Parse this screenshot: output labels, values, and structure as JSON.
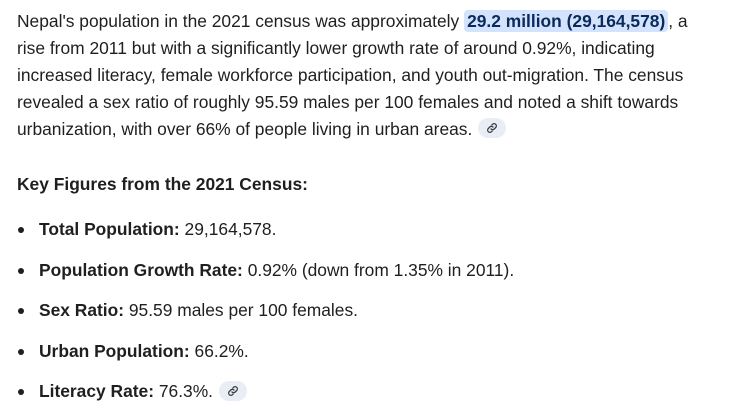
{
  "summary": {
    "part1": "Nepal's population in the 2021 census was approximately ",
    "highlight": "29.2 million (29,164,578)",
    "part2": ", a rise from 2011 but with a significantly lower growth rate of around 0.92%, indicating increased literacy, female workforce participation, and youth out-migration. The census revealed a sex ratio of roughly 95.59 males per 100 females and noted a shift towards urbanization, with over 66% of people living in urban areas."
  },
  "key_figures": {
    "heading": "Key Figures from the 2021 Census:",
    "items": [
      {
        "label": "Total Population:",
        "value": " 29,164,578."
      },
      {
        "label": "Population Growth Rate:",
        "value": " 0.92% (down from 1.35% in 2011)."
      },
      {
        "label": "Sex Ratio:",
        "value": " 95.59 males per 100 females."
      },
      {
        "label": "Urban Population:",
        "value": " 66.2%."
      },
      {
        "label": "Literacy Rate:",
        "value": " 76.3%."
      }
    ]
  },
  "icons": {
    "citation": "link-icon"
  },
  "colors": {
    "highlight_bg": "#d3e3fd",
    "citation_bg": "#e9eef6",
    "text": "#1f1f1f"
  }
}
